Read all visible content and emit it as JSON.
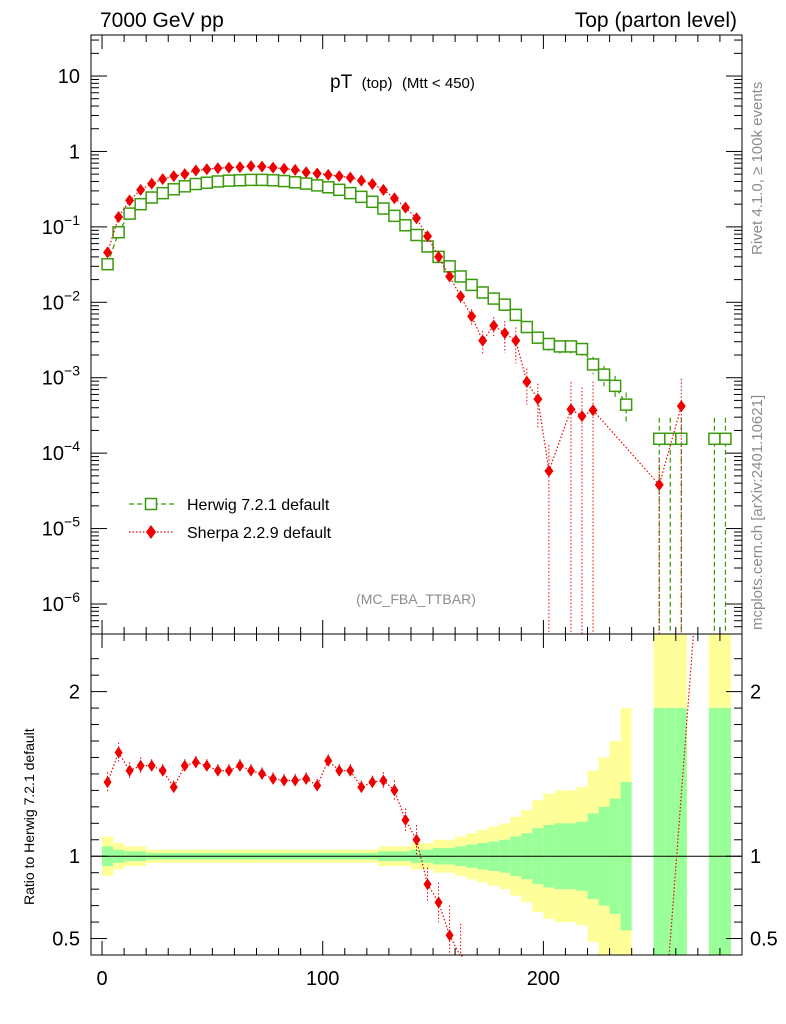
{
  "header": {
    "left": "7000 GeV pp",
    "right": "Top (parton level)"
  },
  "side": {
    "rivet": "Rivet 4.1.0, ≥ 100k events",
    "mcplots": "mcplots.cern.ch [arXiv:2401.10621]"
  },
  "colors": {
    "herwig": "#3a9b0a",
    "sherpa": "#ee0000",
    "band_inner": "#99ff99",
    "band_outer": "#ffff99"
  },
  "chart_data": {
    "type": "line",
    "title": "pT",
    "title_sub": "(top)",
    "title_cut": "(Mtt < 450)",
    "analysis": "(MC_FBA_TTBAR)",
    "xlabel": "",
    "x_range": [
      -5,
      290
    ],
    "x_ticks": [
      0,
      100,
      200
    ],
    "main": {
      "yscale": "log",
      "ylim": [
        4e-07,
        35
      ],
      "y_ticks": [
        {
          "base": "10",
          "exp": "",
          "value": 10
        },
        {
          "base": "1",
          "exp": "",
          "value": 1
        },
        {
          "base": "10",
          "exp": "−1",
          "value": 0.1
        },
        {
          "base": "10",
          "exp": "−2",
          "value": 0.01
        },
        {
          "base": "10",
          "exp": "−3",
          "value": 0.001
        },
        {
          "base": "10",
          "exp": "−4",
          "value": 0.0001
        },
        {
          "base": "10",
          "exp": "−5",
          "value": 1e-05
        },
        {
          "base": "10",
          "exp": "−6",
          "value": 1e-06
        }
      ]
    },
    "ratio": {
      "ylabel": "Ratio to Herwig 7.2.1 default",
      "ylim": [
        0.4,
        2.35
      ],
      "y_ticks": [
        {
          "label": "2",
          "value": 2
        },
        {
          "label": "1",
          "value": 1
        },
        {
          "label": "0.5",
          "value": 0.5
        }
      ]
    },
    "legend": {
      "position": "lower-left",
      "entries": [
        "Herwig 7.2.1 default",
        "Sherpa 2.2.9 default"
      ]
    },
    "bin_width": 5,
    "x": [
      2.5,
      7.5,
      12.5,
      17.5,
      22.5,
      27.5,
      32.5,
      37.5,
      42.5,
      47.5,
      52.5,
      57.5,
      62.5,
      67.5,
      72.5,
      77.5,
      82.5,
      87.5,
      92.5,
      97.5,
      102.5,
      107.5,
      112.5,
      117.5,
      122.5,
      127.5,
      132.5,
      137.5,
      142.5,
      147.5,
      152.5,
      157.5,
      162.5,
      167.5,
      172.5,
      177.5,
      182.5,
      187.5,
      192.5,
      197.5,
      202.5,
      207.5,
      212.5,
      217.5,
      222.5,
      227.5,
      232.5,
      237.5,
      242.5,
      247.5,
      252.5,
      257.5,
      262.5,
      267.5,
      272.5,
      277.5,
      282.5,
      287.5
    ],
    "series": [
      {
        "name": "Herwig 7.2.1 default",
        "values": [
          0.032,
          0.085,
          0.15,
          0.2,
          0.245,
          0.28,
          0.315,
          0.345,
          0.37,
          0.385,
          0.4,
          0.41,
          0.415,
          0.42,
          0.42,
          0.415,
          0.405,
          0.39,
          0.375,
          0.355,
          0.335,
          0.31,
          0.28,
          0.25,
          0.215,
          0.175,
          0.14,
          0.105,
          0.078,
          0.055,
          0.04,
          0.03,
          0.022,
          0.017,
          0.0135,
          0.0112,
          0.0093,
          0.0068,
          0.0047,
          0.0034,
          0.0028,
          0.0026,
          0.0026,
          0.0024,
          0.0015,
          0.0011,
          0.00078,
          0.00044,
          null,
          null,
          0.000155,
          0.000155,
          0.000155,
          null,
          null,
          0.000155,
          0.000155,
          null
        ],
        "errors": [
          0.06,
          0.04,
          0.03,
          0.03,
          0.02,
          0.02,
          0.02,
          0.02,
          0.02,
          0.02,
          0.02,
          0.02,
          0.02,
          0.02,
          0.02,
          0.02,
          0.02,
          0.02,
          0.02,
          0.02,
          0.02,
          0.02,
          0.02,
          0.02,
          0.02,
          0.03,
          0.03,
          0.03,
          0.04,
          0.04,
          0.05,
          0.05,
          0.06,
          0.07,
          0.08,
          0.09,
          0.1,
          0.12,
          0.14,
          0.17,
          0.19,
          0.2,
          0.2,
          0.21,
          0.26,
          0.3,
          0.35,
          0.45,
          null,
          null,
          0.9,
          0.9,
          0.9,
          null,
          null,
          0.9,
          0.9,
          null
        ]
      },
      {
        "name": "Sherpa 2.2.9 default",
        "values": [
          0.046,
          0.135,
          0.225,
          0.31,
          0.375,
          0.43,
          0.47,
          0.5,
          0.56,
          0.58,
          0.6,
          0.61,
          0.62,
          0.64,
          0.63,
          0.61,
          0.59,
          0.57,
          0.53,
          0.51,
          0.49,
          0.47,
          0.45,
          0.41,
          0.37,
          0.31,
          0.24,
          0.18,
          0.13,
          0.075,
          0.04,
          0.022,
          0.012,
          0.0065,
          0.0031,
          0.0049,
          0.0039,
          0.0031,
          0.00088,
          0.00052,
          5.8e-05,
          null,
          0.00038,
          0.00031,
          0.00037,
          null,
          null,
          null,
          null,
          null,
          3.8e-05,
          null,
          0.00042,
          null,
          null,
          null,
          null,
          null
        ],
        "err_lo": [
          0.05,
          0.03,
          0.03,
          0.02,
          0.02,
          0.02,
          0.02,
          0.02,
          0.02,
          0.02,
          0.02,
          0.02,
          0.02,
          0.02,
          0.02,
          0.02,
          0.02,
          0.02,
          0.02,
          0.02,
          0.02,
          0.02,
          0.02,
          0.02,
          0.02,
          0.03,
          0.03,
          0.03,
          0.04,
          0.06,
          0.08,
          0.12,
          0.18,
          0.25,
          0.35,
          0.3,
          0.45,
          0.5,
          0.5,
          0.6,
          0.999,
          null,
          0.999,
          0.999,
          0.999,
          null,
          null,
          null,
          null,
          null,
          0.999,
          null,
          0.999,
          null,
          null,
          null,
          null,
          null
        ],
        "err_hi": [
          0.05,
          0.03,
          0.03,
          0.02,
          0.02,
          0.02,
          0.02,
          0.02,
          0.02,
          0.02,
          0.02,
          0.02,
          0.02,
          0.02,
          0.02,
          0.02,
          0.02,
          0.02,
          0.02,
          0.02,
          0.02,
          0.02,
          0.02,
          0.02,
          0.02,
          0.03,
          0.03,
          0.03,
          0.04,
          0.06,
          0.08,
          0.12,
          0.18,
          0.25,
          0.35,
          0.3,
          0.45,
          0.5,
          0.5,
          0.6,
          1.2,
          null,
          1.3,
          1.4,
          1.4,
          null,
          null,
          null,
          null,
          null,
          1.3,
          null,
          1.3,
          null,
          null,
          null,
          null,
          null
        ]
      }
    ],
    "ratio_values": [
      1.45,
      1.63,
      1.52,
      1.55,
      1.55,
      1.52,
      1.42,
      1.55,
      1.57,
      1.55,
      1.52,
      1.52,
      1.55,
      1.52,
      1.5,
      1.47,
      1.46,
      1.46,
      1.47,
      1.43,
      1.58,
      1.52,
      1.52,
      1.42,
      1.45,
      1.46,
      1.4,
      1.22,
      1.1,
      0.83,
      0.72,
      0.52,
      0.39,
      null,
      null,
      null,
      null,
      null,
      null,
      null,
      null,
      null,
      null,
      null,
      null,
      null,
      null,
      null,
      null,
      null,
      null,
      null,
      null,
      null,
      null,
      null,
      null,
      null
    ],
    "ratio_err": [
      0.06,
      0.06,
      0.05,
      0.05,
      0.04,
      0.04,
      0.04,
      0.04,
      0.04,
      0.04,
      0.04,
      0.04,
      0.04,
      0.04,
      0.04,
      0.04,
      0.04,
      0.04,
      0.04,
      0.04,
      0.04,
      0.04,
      0.04,
      0.04,
      0.04,
      0.05,
      0.06,
      0.07,
      0.09,
      0.1,
      0.12,
      0.18,
      0.2,
      null,
      null,
      null,
      null,
      null,
      null,
      null,
      null,
      null,
      null,
      null,
      null,
      null,
      null,
      null,
      null,
      null,
      null,
      null,
      null,
      null,
      null,
      null,
      null,
      null
    ],
    "ratio_line_tail": {
      "from_x": 257.0,
      "from_y": 0.2,
      "to_x": 268.0,
      "to_y": 2.35
    }
  }
}
